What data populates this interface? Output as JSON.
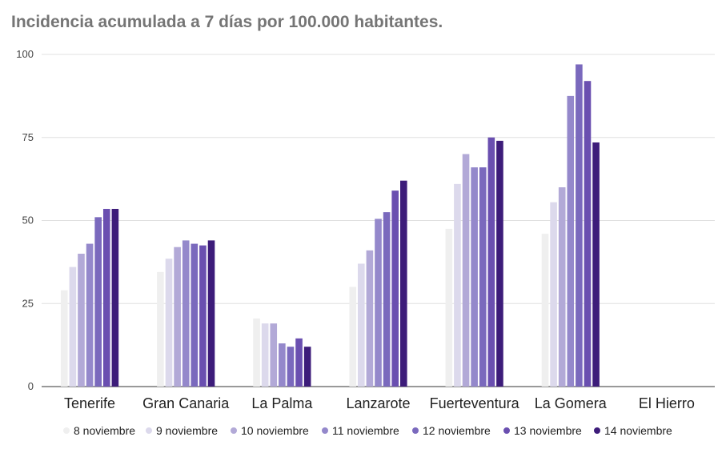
{
  "chart_data": {
    "type": "bar",
    "title": "Incidencia acumulada a 7 días por 100.000 habitantes.",
    "categories": [
      "Tenerife",
      "Gran Canaria",
      "La Palma",
      "Lanzarote",
      "Fuerteventura",
      "La Gomera",
      "El Hierro"
    ],
    "series": [
      {
        "name": "8 noviembre",
        "color": "#efefef",
        "values": [
          29,
          34.5,
          20.5,
          30,
          47.5,
          46,
          0
        ]
      },
      {
        "name": "9 noviembre",
        "color": "#dcd9ec",
        "values": [
          36,
          38.5,
          19,
          37,
          61,
          55.5,
          0
        ]
      },
      {
        "name": "10 noviembre",
        "color": "#b2a9d7",
        "values": [
          40,
          42,
          19,
          41,
          70,
          60,
          0
        ]
      },
      {
        "name": "11 noviembre",
        "color": "#9488cb",
        "values": [
          43,
          44,
          13,
          50.5,
          66,
          87.5,
          0
        ]
      },
      {
        "name": "12 noviembre",
        "color": "#7a69bd",
        "values": [
          51,
          43,
          12,
          52.5,
          66,
          97,
          0
        ]
      },
      {
        "name": "13 noviembre",
        "color": "#6a4fb0",
        "values": [
          53.5,
          42.5,
          14.5,
          59,
          75,
          92,
          0
        ]
      },
      {
        "name": "14 noviembre",
        "color": "#3d1c7a",
        "values": [
          53.5,
          44,
          12,
          62,
          74,
          73.5,
          0
        ]
      }
    ],
    "ylim": [
      0,
      100
    ],
    "yticks": [
      "0",
      "25",
      "50",
      "75",
      "100"
    ],
    "grid": true,
    "legend_position": "bottom"
  }
}
